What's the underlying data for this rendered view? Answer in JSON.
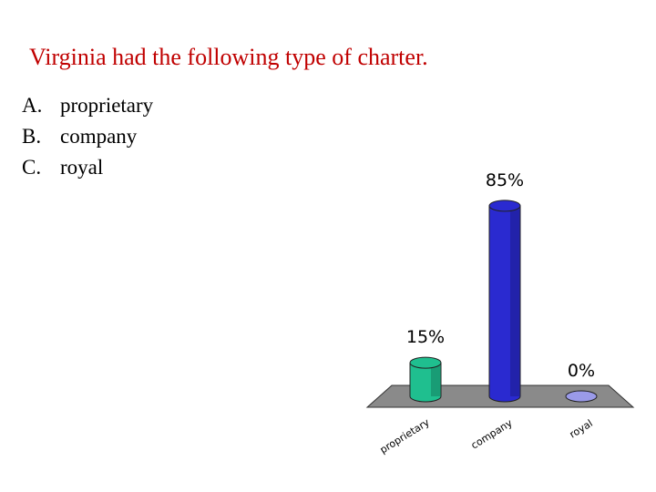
{
  "question": "Virginia had the following type of charter.",
  "answers": [
    {
      "letter": "A.",
      "text": "proprietary"
    },
    {
      "letter": "B.",
      "text": "company"
    },
    {
      "letter": "C.",
      "text": "royal"
    }
  ],
  "chart_data": {
    "type": "bar",
    "categories": [
      "proprietary",
      "company",
      "royal"
    ],
    "values": [
      15,
      85,
      0
    ],
    "value_labels": [
      "15%",
      "85%",
      "0%"
    ],
    "ylim": [
      0,
      100
    ],
    "colors": [
      "#1fbf8f",
      "#2a2ad0",
      "#9a9ae8"
    ],
    "floor_color": "#8a8a8a",
    "three_d": true
  }
}
